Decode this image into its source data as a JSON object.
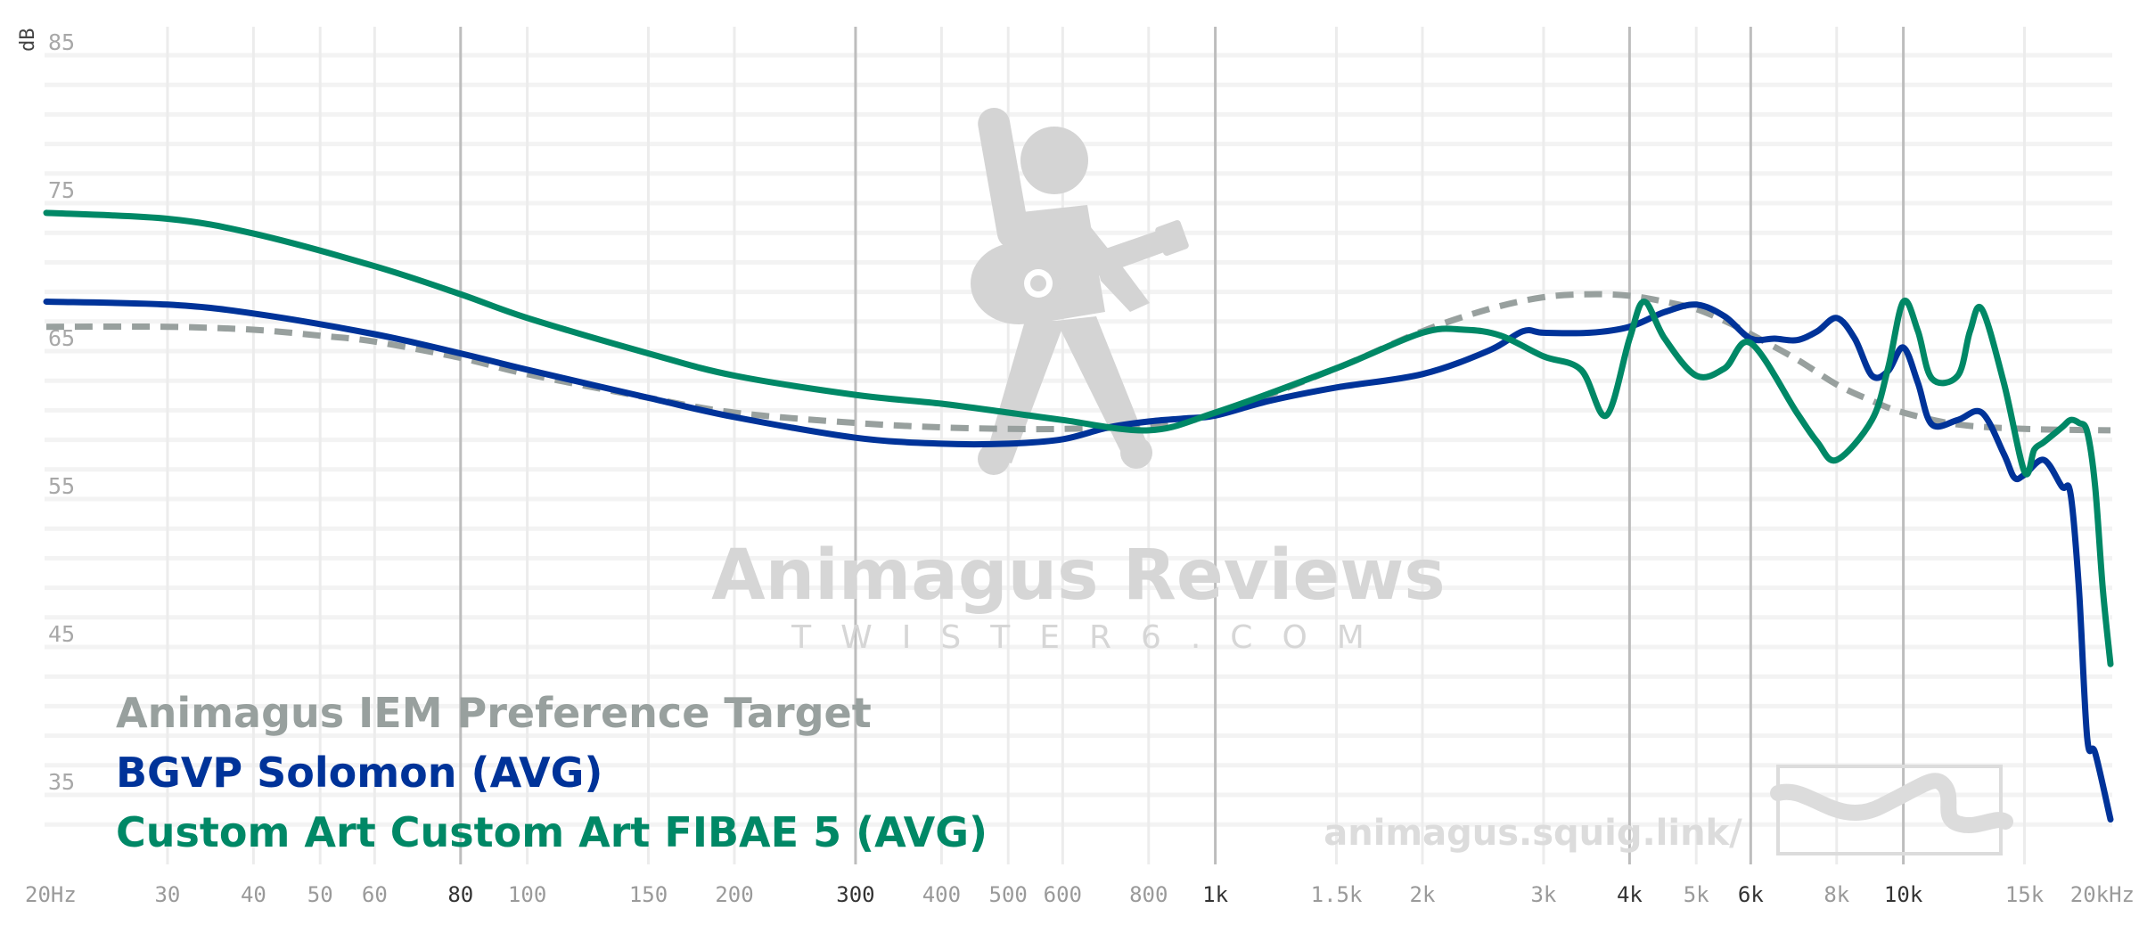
{
  "chart_data": {
    "type": "line",
    "xscale": "log",
    "xlim": [
      20,
      20000
    ],
    "ylim": [
      30,
      85
    ],
    "ylabel": "dB",
    "yticks": [
      35,
      45,
      55,
      65,
      75,
      85
    ],
    "xticks": [
      {
        "v": 20,
        "label": "20Hz",
        "major": false
      },
      {
        "v": 30,
        "label": "30",
        "major": false
      },
      {
        "v": 40,
        "label": "40",
        "major": false
      },
      {
        "v": 50,
        "label": "50",
        "major": false
      },
      {
        "v": 60,
        "label": "60",
        "major": false
      },
      {
        "v": 80,
        "label": "80",
        "major": true
      },
      {
        "v": 100,
        "label": "100",
        "major": false
      },
      {
        "v": 150,
        "label": "150",
        "major": false
      },
      {
        "v": 200,
        "label": "200",
        "major": false
      },
      {
        "v": 300,
        "label": "300",
        "major": true
      },
      {
        "v": 400,
        "label": "400",
        "major": false
      },
      {
        "v": 500,
        "label": "500",
        "major": false
      },
      {
        "v": 600,
        "label": "600",
        "major": false
      },
      {
        "v": 800,
        "label": "800",
        "major": false
      },
      {
        "v": 1000,
        "label": "1k",
        "major": true
      },
      {
        "v": 1500,
        "label": "1.5k",
        "major": false
      },
      {
        "v": 2000,
        "label": "2k",
        "major": false
      },
      {
        "v": 3000,
        "label": "3k",
        "major": false
      },
      {
        "v": 4000,
        "label": "4k",
        "major": true
      },
      {
        "v": 5000,
        "label": "5k",
        "major": false
      },
      {
        "v": 6000,
        "label": "6k",
        "major": true
      },
      {
        "v": 8000,
        "label": "8k",
        "major": false
      },
      {
        "v": 10000,
        "label": "10k",
        "major": true
      },
      {
        "v": 15000,
        "label": "15k",
        "major": false
      },
      {
        "v": 20000,
        "label": "20kHz",
        "major": false
      }
    ],
    "series": [
      {
        "name": "Animagus IEM Preference Target",
        "color": "#98a09e",
        "dashed": true,
        "x": [
          20,
          30,
          40,
          50,
          60,
          80,
          100,
          150,
          200,
          300,
          400,
          500,
          600,
          800,
          1000,
          1500,
          2000,
          2500,
          3000,
          3500,
          4000,
          4500,
          5000,
          5500,
          6000,
          7000,
          8000,
          9000,
          10000,
          12000,
          15000,
          20000
        ],
        "y": [
          65.8,
          65.8,
          65.6,
          65.2,
          64.8,
          63.7,
          62.6,
          61.0,
          60.0,
          59.3,
          59.0,
          58.9,
          58.9,
          59.1,
          59.9,
          63.0,
          65.5,
          67.0,
          67.8,
          68.0,
          67.9,
          67.5,
          67.0,
          66.2,
          65.3,
          63.6,
          61.9,
          60.8,
          60.0,
          59.2,
          58.9,
          58.8
        ]
      },
      {
        "name": "BGVP Solomon (AVG)",
        "color": "#003399",
        "dashed": false,
        "x": [
          20,
          30,
          40,
          60,
          80,
          100,
          150,
          200,
          300,
          400,
          500,
          600,
          700,
          800,
          900,
          1000,
          1200,
          1500,
          2000,
          2500,
          2800,
          3000,
          3500,
          4000,
          4500,
          5000,
          5500,
          6000,
          6500,
          7000,
          7500,
          8000,
          8500,
          9000,
          9500,
          10000,
          10500,
          11000,
          12000,
          13000,
          14000,
          14500,
          15000,
          16000,
          17000,
          17500,
          18000,
          18500,
          19000,
          20000
        ],
        "y": [
          67.5,
          67.3,
          66.7,
          65.3,
          64.0,
          62.9,
          61.0,
          59.7,
          58.3,
          57.9,
          57.9,
          58.2,
          59.0,
          59.4,
          59.6,
          59.8,
          60.8,
          61.7,
          62.6,
          64.2,
          65.5,
          65.4,
          65.4,
          65.8,
          66.8,
          67.3,
          66.5,
          65.0,
          65.0,
          64.9,
          65.5,
          66.4,
          65.0,
          62.5,
          62.8,
          64.4,
          62.0,
          59.2,
          59.5,
          60.0,
          57.2,
          55.6,
          55.8,
          56.8,
          55.0,
          54.5,
          48.0,
          38.0,
          37.0,
          32.5
        ]
      },
      {
        "name": "Custom Art Custom Art FIBAE 5 (AVG)",
        "color": "#008866",
        "dashed": false,
        "x": [
          20,
          30,
          40,
          60,
          80,
          100,
          150,
          200,
          300,
          400,
          500,
          600,
          800,
          1000,
          1500,
          2000,
          2300,
          2600,
          3000,
          3400,
          3700,
          4000,
          4200,
          4500,
          5000,
          5500,
          6000,
          7000,
          7500,
          8000,
          9000,
          9500,
          10000,
          10500,
          11000,
          12000,
          12500,
          13000,
          14000,
          15000,
          15500,
          16000,
          17000,
          17500,
          18000,
          18500,
          19000,
          19500,
          20000
        ],
        "y": [
          73.5,
          73.1,
          72.1,
          69.9,
          68.0,
          66.4,
          64.0,
          62.5,
          61.2,
          60.6,
          60.0,
          59.5,
          58.8,
          60.0,
          63.0,
          65.4,
          65.6,
          65.2,
          63.8,
          62.9,
          59.8,
          65.0,
          67.5,
          65.0,
          62.5,
          63.0,
          64.7,
          60.0,
          58.0,
          56.8,
          59.5,
          63.0,
          67.5,
          65.5,
          62.3,
          62.5,
          65.5,
          67.0,
          62.0,
          56.0,
          57.5,
          58.0,
          59.0,
          59.5,
          59.3,
          58.7,
          55.0,
          48.0,
          43.0
        ]
      }
    ]
  },
  "watermark": {
    "title": "Animagus Reviews",
    "subtitle": "TWISTER6.COM",
    "url": "animagus.squig.link/"
  },
  "colors": {
    "grid_minor": "#ececec",
    "grid_major": "#bdbdbd",
    "watermark": "#d6d6d6"
  }
}
